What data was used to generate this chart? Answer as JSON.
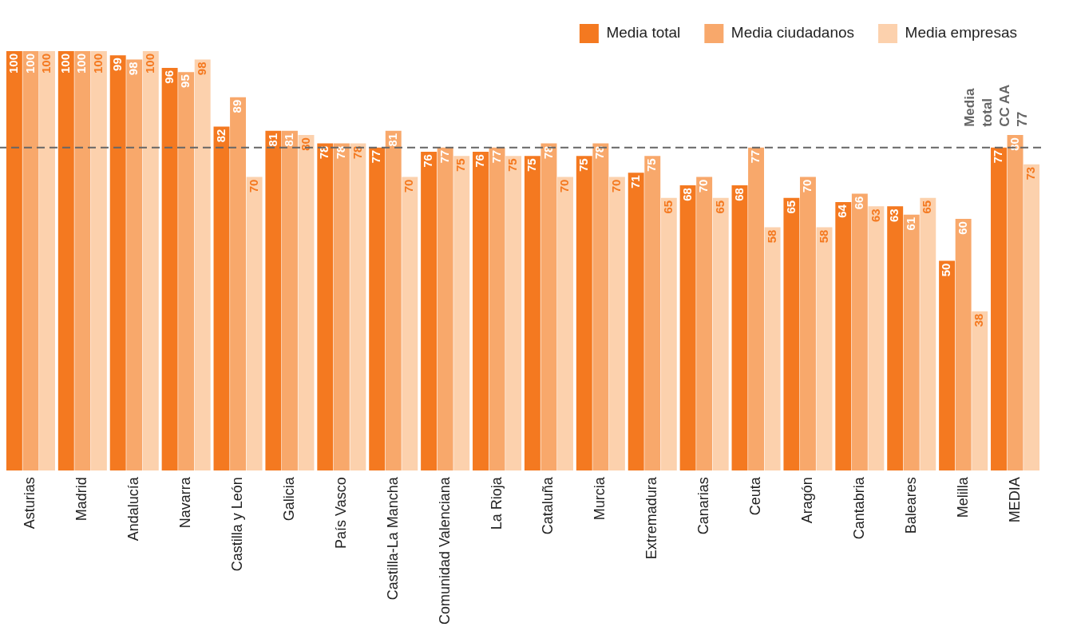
{
  "chart_data": {
    "type": "bar",
    "categories": [
      "Asturias",
      "Madrid",
      "Andalucía",
      "Navarra",
      "Castilla y León",
      "Galicia",
      "País Vasco",
      "Castilla-La Mancha",
      "Comunidad Valenciana",
      "La Rioja",
      "Cataluña",
      "Murcia",
      "Extremadura",
      "Canarias",
      "Ceuta",
      "Aragón",
      "Cantabria",
      "Baleares",
      "Melilla",
      "MEDIA"
    ],
    "series": [
      {
        "name": "Media total",
        "color": "#f47920",
        "values": [
          100,
          100,
          99,
          96,
          82,
          81,
          78,
          77,
          76,
          76,
          75,
          75,
          71,
          68,
          68,
          65,
          64,
          63,
          50,
          77
        ]
      },
      {
        "name": "Media ciudadanos",
        "color": "#f8a86b",
        "values": [
          100,
          100,
          98,
          95,
          89,
          81,
          78,
          81,
          77,
          77,
          78,
          78,
          75,
          70,
          77,
          70,
          66,
          61,
          60,
          80
        ]
      },
      {
        "name": "Media empresas",
        "color": "#fcd1ad",
        "values": [
          100,
          100,
          100,
          98,
          70,
          80,
          78,
          70,
          75,
          75,
          70,
          70,
          65,
          65,
          58,
          58,
          63,
          65,
          38,
          73
        ]
      }
    ],
    "data_labels": true,
    "legend": "top right",
    "grid": false,
    "ref_lines": [
      {
        "axis": "y",
        "value": 77,
        "label": "Media\ntotal\nCC AA\n77",
        "color": "#666666",
        "line_style": "dashed"
      }
    ]
  }
}
